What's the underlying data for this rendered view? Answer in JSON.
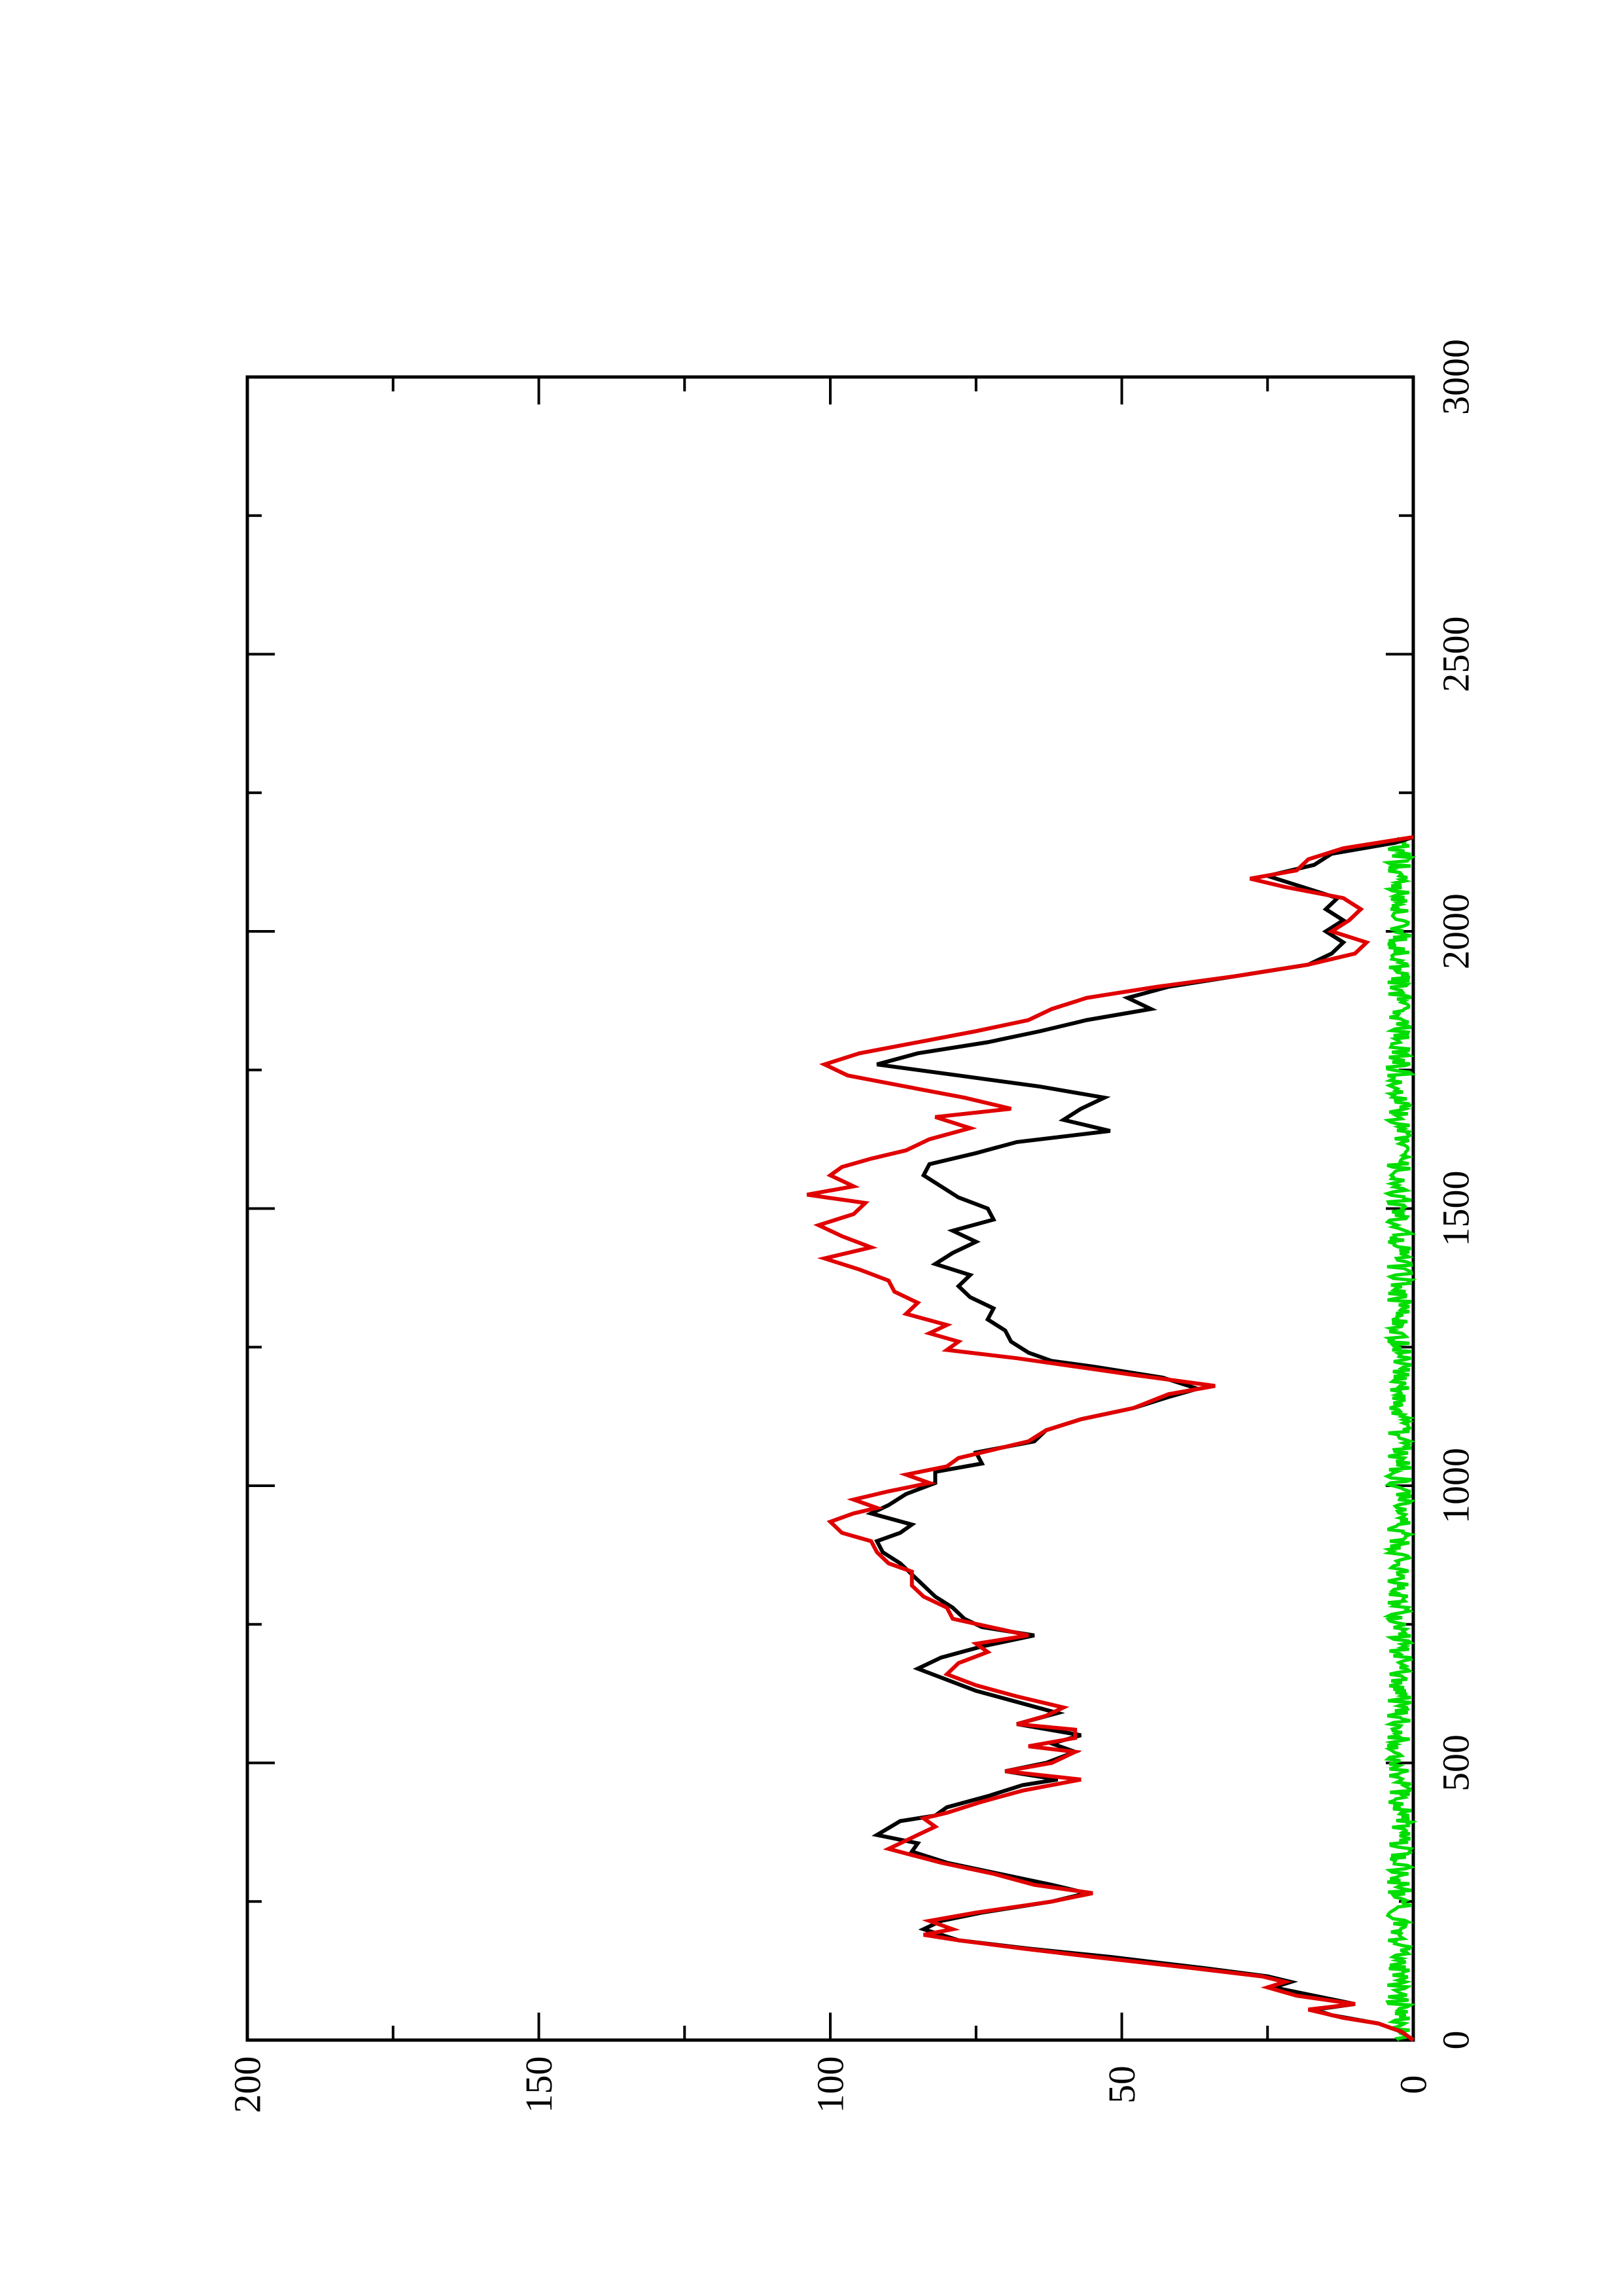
{
  "chart_data": {
    "type": "line",
    "title": "",
    "xlabel": "",
    "ylabel": "",
    "xlim": [
      0,
      3000
    ],
    "ylim": [
      0,
      200
    ],
    "x_ticks": [
      0,
      500,
      1000,
      1500,
      2000,
      2500,
      3000
    ],
    "x_tick_labels": [
      "0",
      "500",
      "1000",
      "1500",
      "2000",
      "2500",
      "3000"
    ],
    "y_ticks": [
      0,
      50,
      100,
      150,
      200
    ],
    "y_tick_labels": [
      "0",
      "50",
      "100",
      "150",
      "200"
    ],
    "orientation": "rotated 90 degrees counter-clockwise",
    "grid": false,
    "legend": "none",
    "series": [
      {
        "color": "#000000",
        "points": [
          [
            0,
            0
          ],
          [
            15,
            2
          ],
          [
            30,
            6
          ],
          [
            45,
            14
          ],
          [
            55,
            17
          ],
          [
            65,
            10
          ],
          [
            80,
            17
          ],
          [
            95,
            24
          ],
          [
            105,
            21
          ],
          [
            115,
            25
          ],
          [
            130,
            36
          ],
          [
            150,
            52
          ],
          [
            165,
            66
          ],
          [
            180,
            78
          ],
          [
            200,
            84
          ],
          [
            215,
            81
          ],
          [
            230,
            74
          ],
          [
            250,
            62
          ],
          [
            265,
            56
          ],
          [
            280,
            62
          ],
          [
            300,
            71
          ],
          [
            320,
            80
          ],
          [
            340,
            86
          ],
          [
            355,
            85
          ],
          [
            370,
            92
          ],
          [
            395,
            88
          ],
          [
            405,
            82
          ],
          [
            420,
            80
          ],
          [
            440,
            73
          ],
          [
            460,
            67
          ],
          [
            470,
            61
          ],
          [
            485,
            70
          ],
          [
            500,
            63
          ],
          [
            520,
            58
          ],
          [
            535,
            62
          ],
          [
            550,
            57
          ],
          [
            570,
            68
          ],
          [
            590,
            61
          ],
          [
            610,
            68
          ],
          [
            630,
            75
          ],
          [
            650,
            80
          ],
          [
            670,
            85
          ],
          [
            690,
            81
          ],
          [
            710,
            74
          ],
          [
            730,
            65
          ],
          [
            745,
            74
          ],
          [
            760,
            77
          ],
          [
            780,
            79
          ],
          [
            800,
            82
          ],
          [
            820,
            84
          ],
          [
            840,
            86
          ],
          [
            860,
            88
          ],
          [
            880,
            91
          ],
          [
            900,
            92
          ],
          [
            915,
            88
          ],
          [
            930,
            86
          ],
          [
            950,
            93
          ],
          [
            965,
            90
          ],
          [
            985,
            87
          ],
          [
            1005,
            82
          ],
          [
            1025,
            82
          ],
          [
            1040,
            74
          ],
          [
            1060,
            75
          ],
          [
            1080,
            65
          ],
          [
            1100,
            63
          ],
          [
            1120,
            57
          ],
          [
            1140,
            48
          ],
          [
            1160,
            42
          ],
          [
            1175,
            37
          ],
          [
            1195,
            43
          ],
          [
            1215,
            55
          ],
          [
            1225,
            62
          ],
          [
            1240,
            66
          ],
          [
            1260,
            69
          ],
          [
            1280,
            70
          ],
          [
            1300,
            73
          ],
          [
            1320,
            72
          ],
          [
            1340,
            76
          ],
          [
            1360,
            78
          ],
          [
            1380,
            76
          ],
          [
            1400,
            82
          ],
          [
            1420,
            79
          ],
          [
            1440,
            75
          ],
          [
            1460,
            79
          ],
          [
            1480,
            72
          ],
          [
            1500,
            73
          ],
          [
            1520,
            78
          ],
          [
            1540,
            81
          ],
          [
            1560,
            84
          ],
          [
            1580,
            83
          ],
          [
            1600,
            75
          ],
          [
            1620,
            68
          ],
          [
            1640,
            52
          ],
          [
            1660,
            60
          ],
          [
            1680,
            57
          ],
          [
            1700,
            53
          ],
          [
            1720,
            64
          ],
          [
            1740,
            78
          ],
          [
            1760,
            92
          ],
          [
            1780,
            85
          ],
          [
            1800,
            73
          ],
          [
            1820,
            64
          ],
          [
            1840,
            56
          ],
          [
            1860,
            45
          ],
          [
            1880,
            49
          ],
          [
            1900,
            42
          ],
          [
            1920,
            30
          ],
          [
            1940,
            18
          ],
          [
            1960,
            14
          ],
          [
            1980,
            12
          ],
          [
            2000,
            15
          ],
          [
            2020,
            12
          ],
          [
            2040,
            15
          ],
          [
            2060,
            13
          ],
          [
            2080,
            19
          ],
          [
            2100,
            25
          ],
          [
            2120,
            17
          ],
          [
            2140,
            14
          ],
          [
            2160,
            3
          ],
          [
            2170,
            0
          ]
        ]
      },
      {
        "color": "#e00000",
        "points": [
          [
            0,
            0
          ],
          [
            15,
            2
          ],
          [
            30,
            6
          ],
          [
            40,
            12
          ],
          [
            55,
            18
          ],
          [
            65,
            10
          ],
          [
            80,
            20
          ],
          [
            95,
            25
          ],
          [
            105,
            22
          ],
          [
            115,
            26
          ],
          [
            130,
            38
          ],
          [
            150,
            55
          ],
          [
            165,
            67
          ],
          [
            180,
            78
          ],
          [
            190,
            84
          ],
          [
            200,
            79
          ],
          [
            215,
            83
          ],
          [
            230,
            75
          ],
          [
            250,
            62
          ],
          [
            265,
            55
          ],
          [
            280,
            65
          ],
          [
            300,
            72
          ],
          [
            320,
            81
          ],
          [
            345,
            90
          ],
          [
            365,
            86
          ],
          [
            385,
            82
          ],
          [
            400,
            84
          ],
          [
            410,
            80
          ],
          [
            430,
            74
          ],
          [
            450,
            67
          ],
          [
            470,
            57
          ],
          [
            485,
            70
          ],
          [
            500,
            62
          ],
          [
            520,
            58
          ],
          [
            530,
            66
          ],
          [
            545,
            58
          ],
          [
            560,
            58
          ],
          [
            570,
            68
          ],
          [
            585,
            63
          ],
          [
            600,
            60
          ],
          [
            620,
            68
          ],
          [
            640,
            75
          ],
          [
            660,
            80
          ],
          [
            680,
            78
          ],
          [
            700,
            73
          ],
          [
            715,
            75
          ],
          [
            730,
            66
          ],
          [
            760,
            79
          ],
          [
            780,
            80
          ],
          [
            800,
            84
          ],
          [
            820,
            86
          ],
          [
            845,
            86
          ],
          [
            860,
            90
          ],
          [
            880,
            92
          ],
          [
            900,
            93
          ],
          [
            915,
            98
          ],
          [
            935,
            100
          ],
          [
            950,
            96
          ],
          [
            960,
            92
          ],
          [
            975,
            96
          ],
          [
            990,
            90
          ],
          [
            1005,
            83
          ],
          [
            1020,
            87
          ],
          [
            1035,
            80
          ],
          [
            1050,
            78
          ],
          [
            1065,
            72
          ],
          [
            1080,
            66
          ],
          [
            1100,
            63
          ],
          [
            1120,
            57
          ],
          [
            1140,
            48
          ],
          [
            1165,
            42
          ],
          [
            1180,
            34
          ],
          [
            1200,
            48
          ],
          [
            1215,
            58
          ],
          [
            1230,
            68
          ],
          [
            1245,
            80
          ],
          [
            1260,
            78
          ],
          [
            1275,
            83
          ],
          [
            1290,
            80
          ],
          [
            1310,
            87
          ],
          [
            1330,
            85
          ],
          [
            1350,
            89
          ],
          [
            1370,
            90
          ],
          [
            1390,
            95
          ],
          [
            1410,
            101
          ],
          [
            1430,
            93
          ],
          [
            1450,
            98
          ],
          [
            1470,
            102
          ],
          [
            1490,
            96
          ],
          [
            1510,
            94
          ],
          [
            1525,
            104
          ],
          [
            1540,
            96
          ],
          [
            1560,
            100
          ],
          [
            1575,
            98
          ],
          [
            1590,
            93
          ],
          [
            1605,
            87
          ],
          [
            1625,
            83
          ],
          [
            1645,
            76
          ],
          [
            1665,
            82
          ],
          [
            1680,
            69
          ],
          [
            1700,
            77
          ],
          [
            1720,
            87
          ],
          [
            1740,
            97
          ],
          [
            1760,
            101
          ],
          [
            1780,
            95
          ],
          [
            1800,
            85
          ],
          [
            1820,
            75
          ],
          [
            1840,
            66
          ],
          [
            1860,
            62
          ],
          [
            1880,
            56
          ],
          [
            1900,
            44
          ],
          [
            1920,
            30
          ],
          [
            1940,
            18
          ],
          [
            1960,
            10
          ],
          [
            1980,
            8
          ],
          [
            2000,
            14
          ],
          [
            2020,
            11
          ],
          [
            2040,
            9
          ],
          [
            2060,
            12
          ],
          [
            2080,
            22
          ],
          [
            2095,
            28
          ],
          [
            2110,
            20
          ],
          [
            2130,
            18
          ],
          [
            2150,
            12
          ],
          [
            2170,
            0
          ]
        ]
      },
      {
        "color": "#00dd00",
        "points": [
          [
            0,
            3
          ],
          [
            100,
            3
          ],
          [
            200,
            3
          ],
          [
            300,
            3
          ],
          [
            400,
            3
          ],
          [
            500,
            3
          ],
          [
            600,
            3
          ],
          [
            700,
            3
          ],
          [
            800,
            3
          ],
          [
            900,
            3
          ],
          [
            1000,
            3
          ],
          [
            1100,
            3
          ],
          [
            1200,
            3
          ],
          [
            1300,
            3
          ],
          [
            1400,
            3
          ],
          [
            1500,
            3
          ],
          [
            1600,
            3
          ],
          [
            1700,
            3
          ],
          [
            1800,
            3
          ],
          [
            1900,
            3
          ],
          [
            2000,
            3
          ],
          [
            2100,
            3
          ],
          [
            2170,
            3
          ]
        ]
      }
    ]
  }
}
